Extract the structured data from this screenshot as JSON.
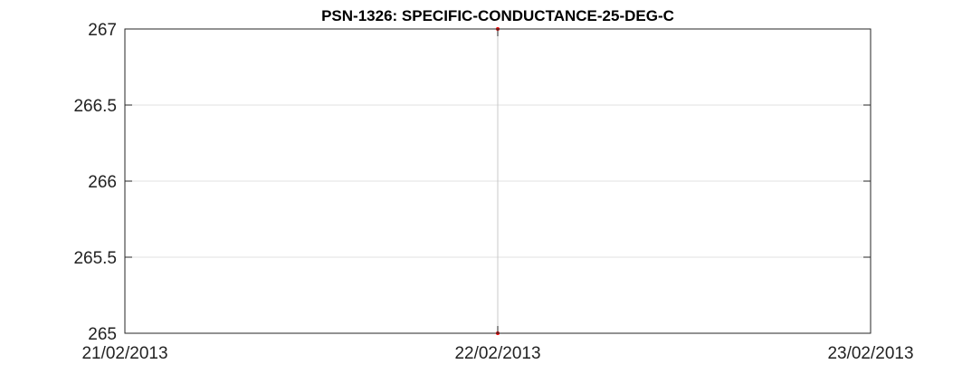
{
  "chart_data": {
    "type": "line",
    "title": "PSN-1326: SPECIFIC-CONDUCTANCE-25-DEG-C",
    "xlabel": "",
    "ylabel": "",
    "x_ticks": [
      "21/02/2013",
      "22/02/2013",
      "23/02/2013"
    ],
    "y_ticks": [
      "265",
      "265.5",
      "266",
      "266.5",
      "267"
    ],
    "y_tick_values": [
      265,
      265.5,
      266,
      266.5,
      267
    ],
    "xlim_days": [
      0,
      2
    ],
    "ylim": [
      265,
      267
    ],
    "grid": true,
    "series": [
      {
        "name": "SPECIFIC-CONDUCTANCE-25-DEG-C",
        "color": "#ff0000",
        "line_color": "#c8c8c8",
        "points": [
          {
            "x_day": 1,
            "y": 265
          },
          {
            "x_day": 1,
            "y": 267
          }
        ]
      }
    ],
    "colors": {
      "grid": "#e0e0e0",
      "axes": "#262626",
      "marker": "#ff0000"
    }
  }
}
